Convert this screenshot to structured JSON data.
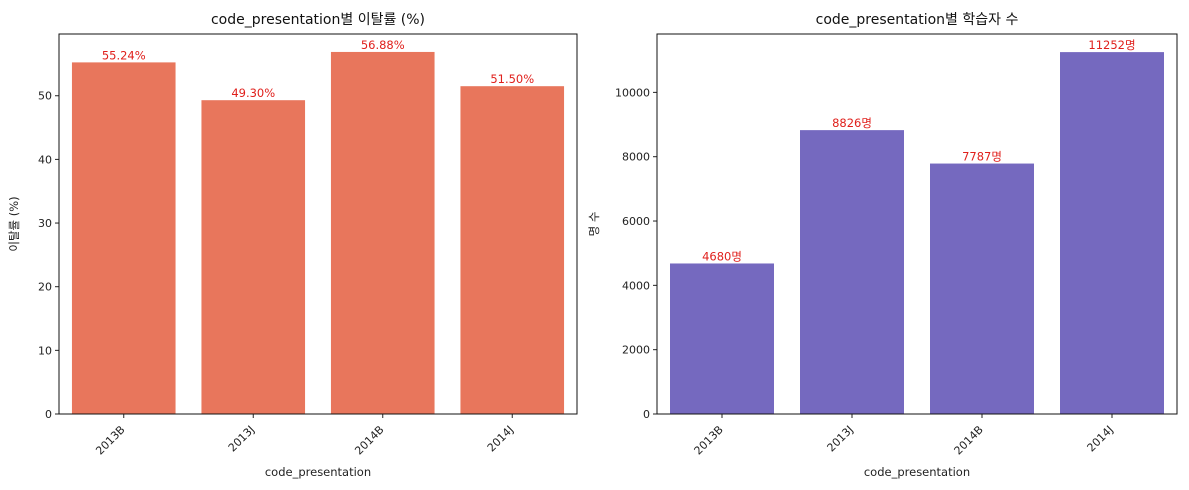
{
  "chart_data": [
    {
      "type": "bar",
      "title": "code_presentation별 이탈률 (%)",
      "xlabel": "code_presentation",
      "ylabel": "이탈률 (%)",
      "categories": [
        "2013B",
        "2013J",
        "2014B",
        "2014J"
      ],
      "values": [
        55.24,
        49.3,
        56.88,
        51.5
      ],
      "data_labels": [
        "55.24%",
        "49.30%",
        "56.88%",
        "51.50%"
      ],
      "ylim": [
        0,
        59.7
      ],
      "yticks": [
        0,
        10,
        20,
        30,
        40,
        50
      ],
      "color": "#e8765c",
      "label_color": "#e0201c",
      "grid": false
    },
    {
      "type": "bar",
      "title": "code_presentation별 학습자 수",
      "xlabel": "code_presentation",
      "ylabel": "명 수",
      "categories": [
        "2013B",
        "2013J",
        "2014B",
        "2014J"
      ],
      "values": [
        4680,
        8826,
        7787,
        11252
      ],
      "data_labels": [
        "4680명",
        "8826명",
        "7787명",
        "11252명"
      ],
      "ylim": [
        0,
        11815
      ],
      "yticks": [
        0,
        2000,
        4000,
        6000,
        8000,
        10000
      ],
      "color": "#7569bf",
      "label_color": "#e0201c",
      "grid": false
    }
  ]
}
